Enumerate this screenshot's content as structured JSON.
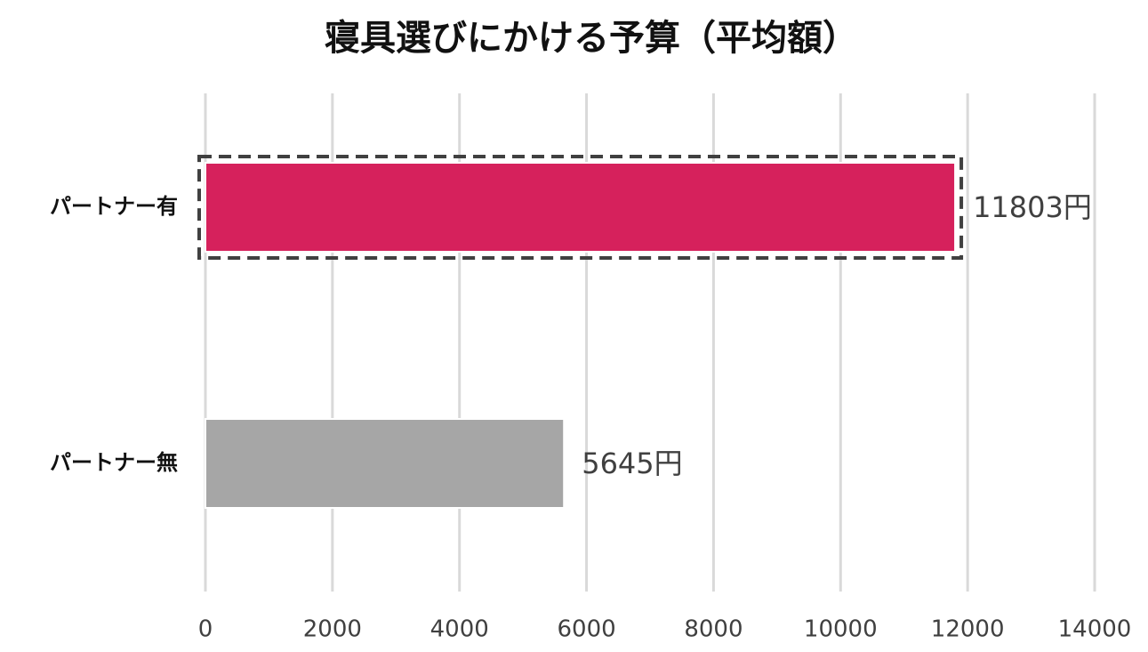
{
  "chart_data": {
    "type": "barh",
    "title": "寝具選びにかける予算（平均額）",
    "categories": [
      "パートナー有",
      "パートナー無"
    ],
    "values": [
      11803,
      5645
    ],
    "value_labels": [
      "11803円",
      "5645円"
    ],
    "colors": [
      "#d6215c",
      "#a6a6a6"
    ],
    "xlim": [
      0,
      14000
    ],
    "xticks": [
      0,
      2000,
      4000,
      6000,
      8000,
      10000,
      12000,
      14000
    ],
    "grid": true
  }
}
